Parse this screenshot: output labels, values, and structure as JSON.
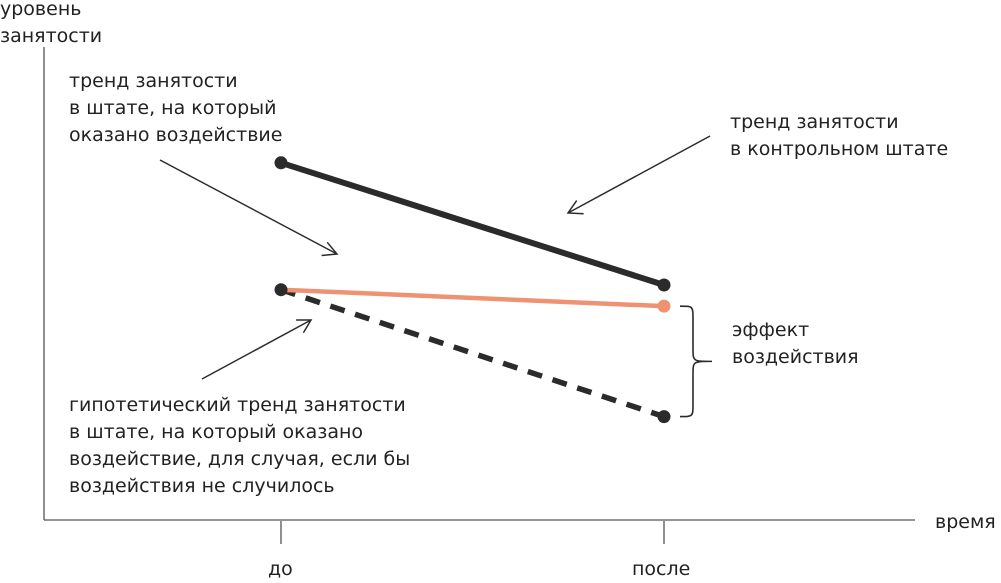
{
  "colors": {
    "dark": "#2b2b2b",
    "axis": "#555555",
    "orange": "#ee9272",
    "text": "#222222"
  },
  "axes": {
    "y_label": [
      "уровень",
      "занятости"
    ],
    "x_label": "время",
    "x_ticks": [
      "до",
      "после"
    ]
  },
  "series": {
    "control": {
      "label_lines": [
        "тренд занятости",
        "в контрольном штате"
      ],
      "before": 0.76,
      "after": 0.5
    },
    "treated": {
      "label_lines": [
        "тренд занятости",
        "в штате, на который",
        "оказано воздействие"
      ],
      "before": 0.49,
      "after": 0.455
    },
    "counterfactual": {
      "label_lines": [
        "гипотетический тренд занятости",
        "в штате, на который оказано",
        "воздействие, для случая, если бы",
        "воздействия не случилось"
      ],
      "before": 0.49,
      "after": 0.22
    }
  },
  "effect": {
    "label_lines": [
      "эффект",
      "воздействия"
    ]
  }
}
